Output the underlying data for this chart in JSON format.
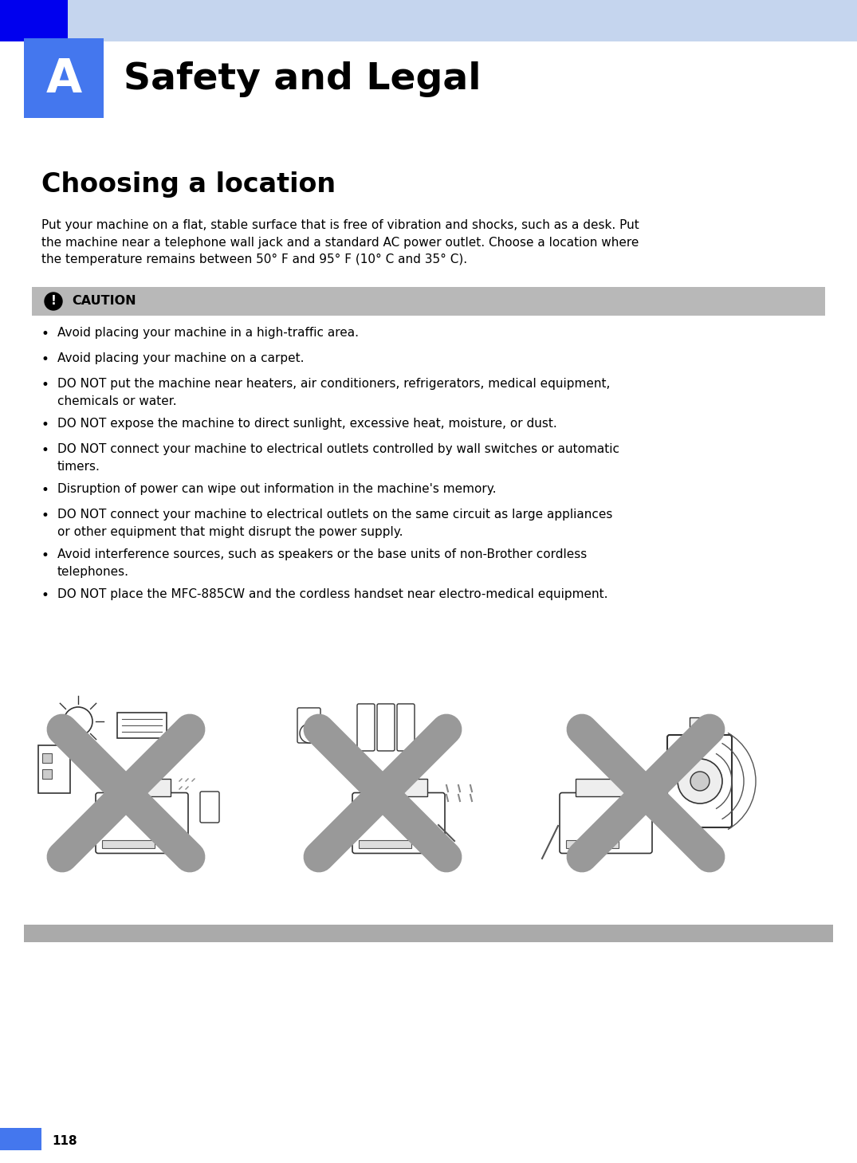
{
  "page_bg": "#ffffff",
  "header_light_blue": "#c5d5ee",
  "header_dark_blue": "#0000ee",
  "header_box_blue": "#4477ee",
  "header_letter": "A",
  "header_title": "Safety and Legal",
  "section_title": "Choosing a location",
  "intro_text": "Put your machine on a flat, stable surface that is free of vibration and shocks, such as a desk. Put\nthe machine near a telephone wall jack and a standard AC power outlet. Choose a location where\nthe temperature remains between 50° F and 95° F (10° C and 35° C).",
  "caution_bg": "#b8b8b8",
  "caution_label": "CAUTION",
  "bullet_items": [
    "Avoid placing your machine in a high-traffic area.",
    "Avoid placing your machine on a carpet.",
    "DO NOT put the machine near heaters, air conditioners, refrigerators, medical equipment,\nchemicals or water.",
    "DO NOT expose the machine to direct sunlight, excessive heat, moisture, or dust.",
    "DO NOT connect your machine to electrical outlets controlled by wall switches or automatic\ntimers.",
    "Disruption of power can wipe out information in the machine's memory.",
    "DO NOT connect your machine to electrical outlets on the same circuit as large appliances\nor other equipment that might disrupt the power supply.",
    "Avoid interference sources, such as speakers or the base units of non-Brother cordless\ntelephones.",
    "DO NOT place the MFC-885CW and the cordless handset near electro-medical equipment."
  ],
  "footer_bar_color": "#aaaaaa",
  "footer_num_bg": "#4477ee",
  "footer_number": "118",
  "img_x_color": "#aaaaaa",
  "img_line_color": "#333333"
}
